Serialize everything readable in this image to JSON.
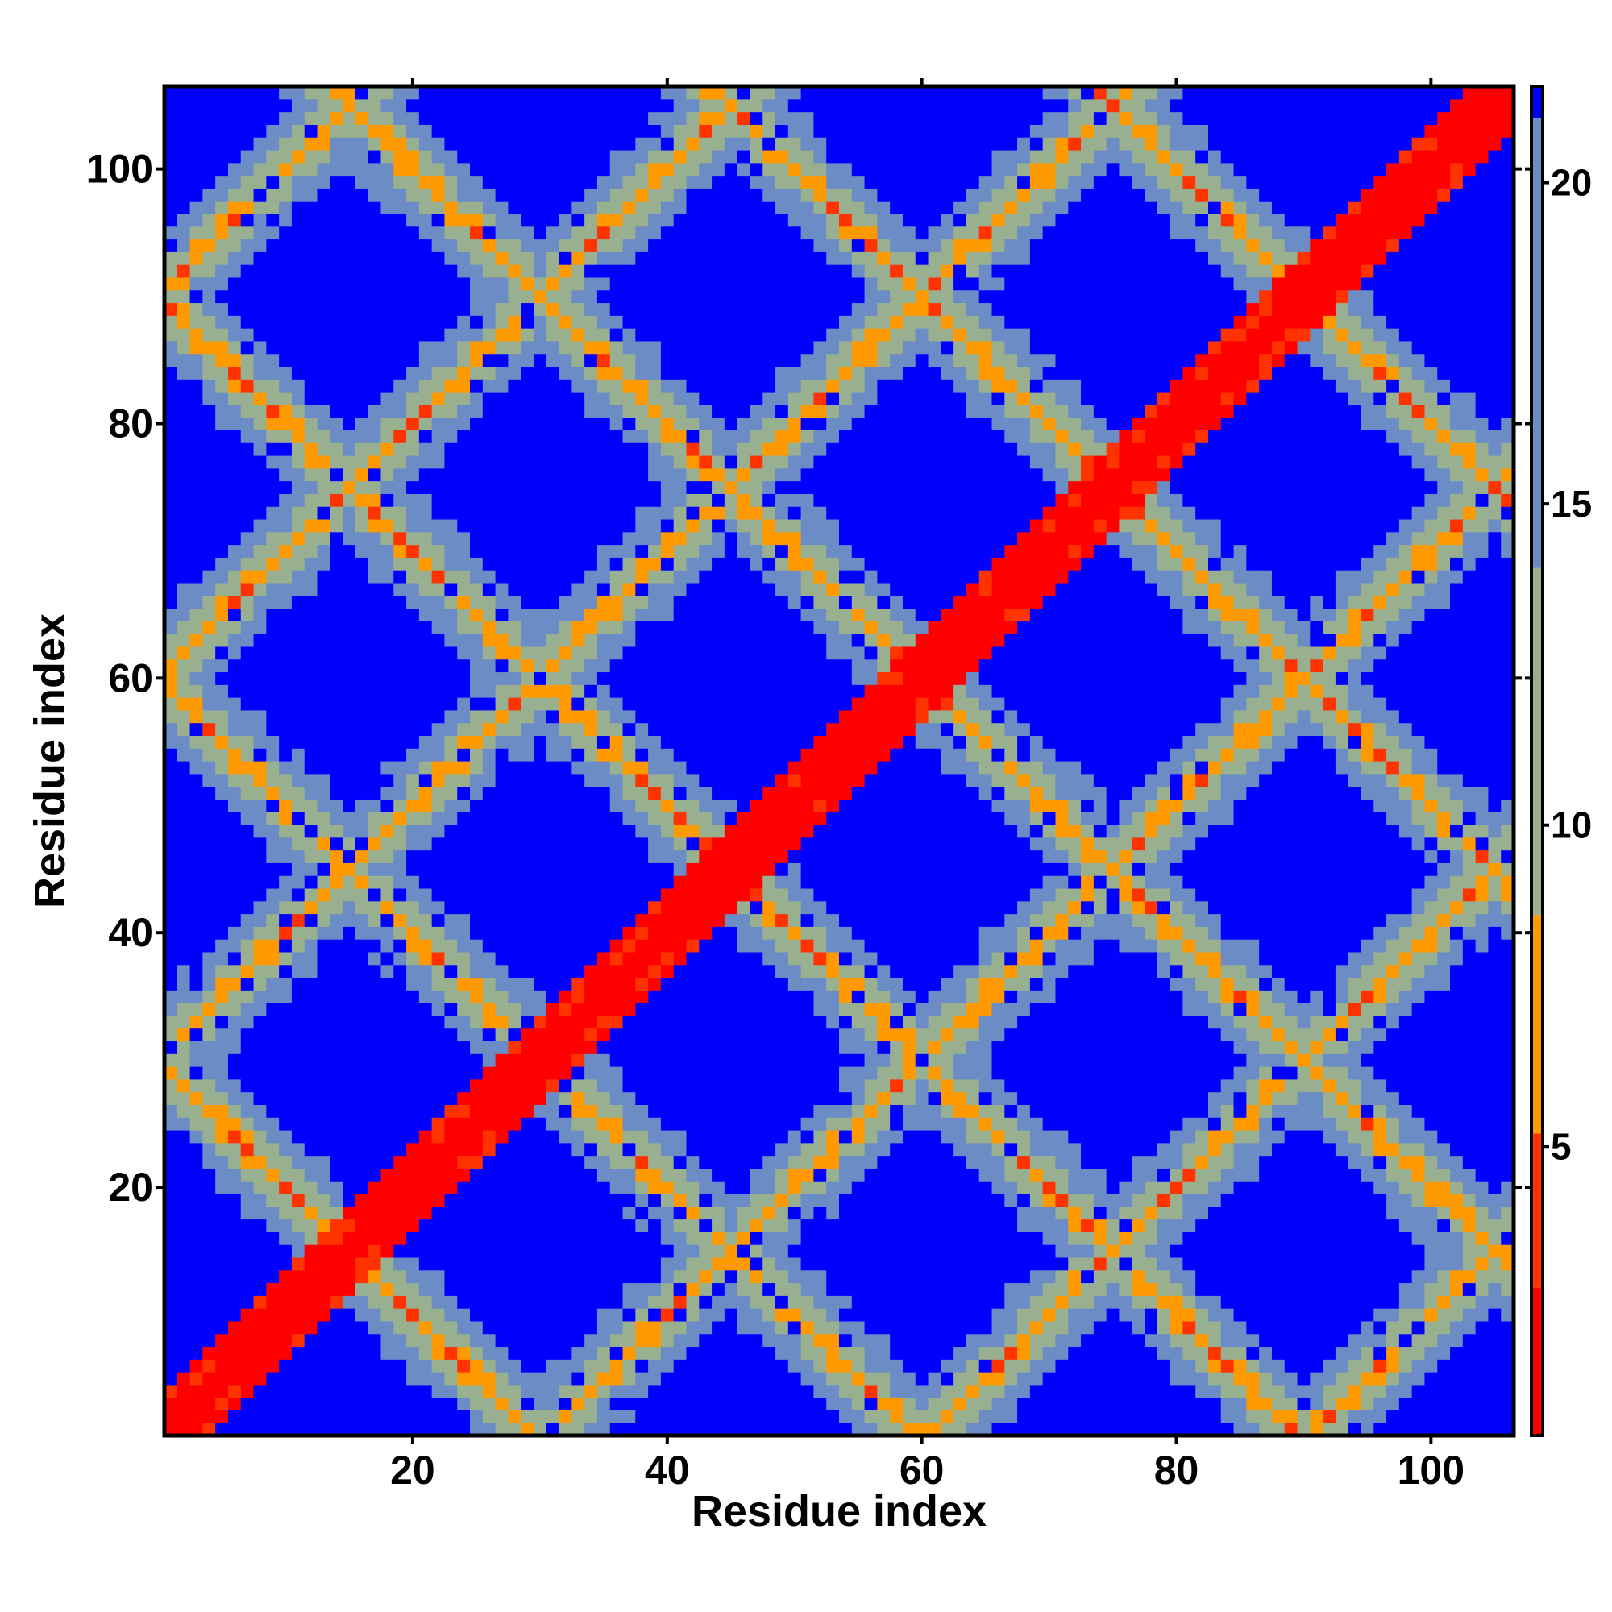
{
  "chart_data": {
    "type": "heatmap",
    "title": "",
    "xlabel": "Residue index",
    "ylabel": "Residue index",
    "n_residues": 106,
    "xlim": [
      1,
      106
    ],
    "ylim": [
      1,
      106
    ],
    "x_ticks": [
      20,
      40,
      60,
      80,
      100
    ],
    "y_ticks": [
      20,
      40,
      60,
      80,
      100
    ],
    "x_tick_labels": [
      "20",
      "40",
      "60",
      "80",
      "100"
    ],
    "y_tick_labels": [
      "20",
      "40",
      "60",
      "80",
      "100"
    ],
    "colorbar": {
      "range": [
        0.5,
        21.5
      ],
      "ticks": [
        5,
        10,
        15,
        20
      ],
      "tick_labels": [
        "5",
        "10",
        "15",
        "20"
      ],
      "color_stops": [
        {
          "max": 2.8,
          "color": "#ff0000"
        },
        {
          "max": 5.2,
          "color": "#ff3300"
        },
        {
          "max": 8.6,
          "color": "#ff9900"
        },
        {
          "max": 14.0,
          "color": "#99b090"
        },
        {
          "max": 21.0,
          "color": "#6b8cc5"
        },
        {
          "max": 99,
          "color": "#0000ff"
        }
      ]
    },
    "value_description": "Symmetric residue-residue distance matrix; main diagonal minimum, anti-diagonal bands of close contacts at i+j≈30,60,90,120,150,180 and parallel off-diagonal bands at |i-j|≈30,60,90; far distances saturate (blue).",
    "anti_diagonal_bands": [
      30,
      60,
      90,
      120,
      150,
      180
    ],
    "parallel_bands": [
      30,
      60,
      90
    ],
    "grid": false,
    "legend": "colorbar-right"
  }
}
